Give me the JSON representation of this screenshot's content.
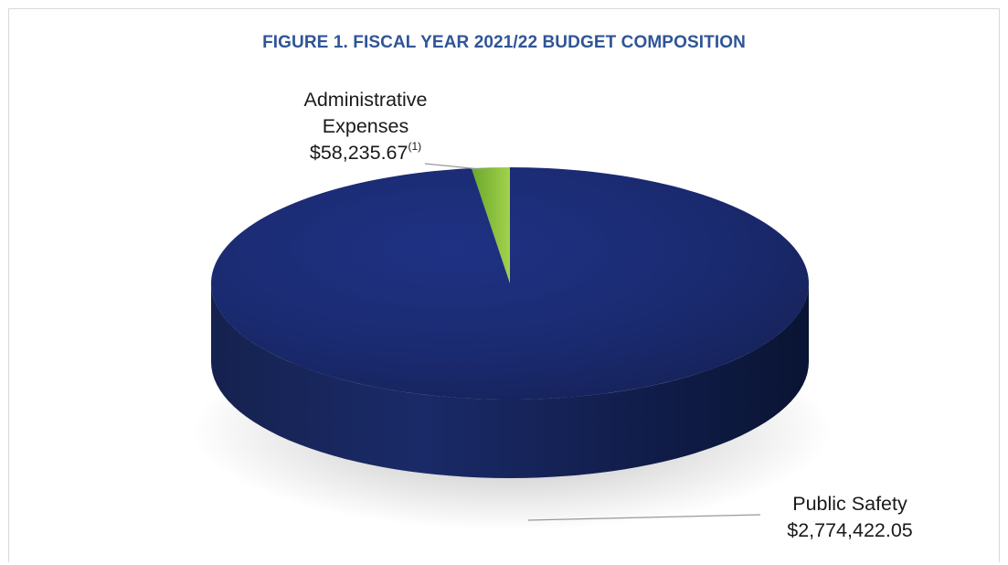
{
  "chart_data": {
    "type": "pie",
    "title": "FIGURE 1. FISCAL YEAR 2021/22 BUDGET COMPOSITION",
    "slices": [
      {
        "label_line1": "Administrative",
        "label_line2": "Expenses",
        "value_text": "$58,235.67",
        "footnote": "(1)",
        "value": 58235.67,
        "color": "#8dc63f"
      },
      {
        "label_line1": "Public Safety",
        "value_text": "$2,774,422.05",
        "value": 2774422.05,
        "color": "#1f2f78"
      }
    ],
    "style": "3d",
    "legend": "none"
  }
}
